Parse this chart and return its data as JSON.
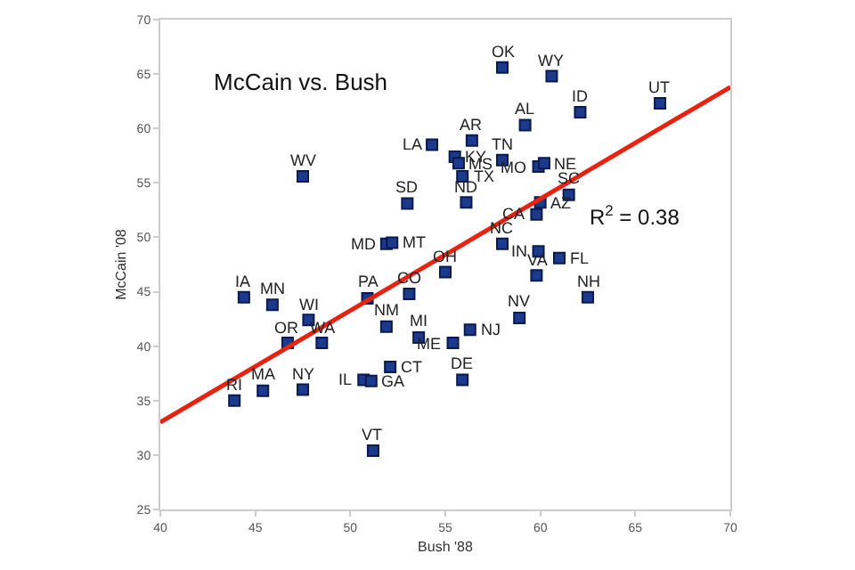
{
  "chart_data": {
    "type": "scatter",
    "title": "McCain vs. Bush",
    "xlabel": "Bush '88",
    "ylabel": "McCain '08",
    "xlim": [
      40,
      70
    ],
    "xticks": [
      40,
      45,
      50,
      55,
      60,
      65,
      70
    ],
    "ylim": [
      25,
      70
    ],
    "yticks": [
      25,
      30,
      35,
      40,
      45,
      50,
      55,
      60,
      65,
      70
    ],
    "grid": false,
    "marker": "square",
    "series": [
      {
        "color": "#1c3a8c",
        "x": [
          58.0,
          60.6,
          66.3,
          62.1,
          59.2,
          54.3,
          56.4,
          55.5,
          55.7,
          55.9,
          56.1,
          58.0,
          59.9,
          60.2,
          60.0,
          59.8,
          61.5,
          58.0,
          59.9,
          61.0,
          59.8,
          55.0,
          62.5,
          58.9,
          56.3,
          55.4,
          55.9,
          47.5,
          53.0,
          51.9,
          52.2,
          53.1,
          50.9,
          51.9,
          53.6,
          52.1,
          50.7,
          51.1,
          51.2,
          44.4,
          45.9,
          47.8,
          46.7,
          48.5,
          45.4,
          47.5,
          43.9
        ],
        "values": [
          65.6,
          64.8,
          62.3,
          61.5,
          60.3,
          58.5,
          58.9,
          57.4,
          56.8,
          55.6,
          53.2,
          57.1,
          56.5,
          56.8,
          53.2,
          52.1,
          53.9,
          49.4,
          48.7,
          48.1,
          46.5,
          46.8,
          44.5,
          42.6,
          41.5,
          40.3,
          36.9,
          55.6,
          53.1,
          49.4,
          49.5,
          44.8,
          44.4,
          41.8,
          40.8,
          38.1,
          36.9,
          36.8,
          30.4,
          44.5,
          43.8,
          42.4,
          40.3,
          40.3,
          35.9,
          36.0,
          35.0
        ]
      },
      {
        "type": "line",
        "color": "#e8220f",
        "marker": "none",
        "x": [
          40,
          70
        ],
        "values": [
          33.0,
          63.8
        ]
      }
    ],
    "annotations": [
      {
        "text": "OK",
        "x": 58.0,
        "y": 65.6
      },
      {
        "text": "WY",
        "x": 60.6,
        "y": 64.8
      },
      {
        "text": "UT",
        "x": 66.3,
        "y": 62.3
      },
      {
        "text": "ID",
        "x": 62.1,
        "y": 61.5
      },
      {
        "text": "AL",
        "x": 59.2,
        "y": 60.3
      },
      {
        "text": "LA",
        "x": 54.3,
        "y": 58.5
      },
      {
        "text": "AR",
        "x": 56.4,
        "y": 58.9
      },
      {
        "text": "KY",
        "x": 55.5,
        "y": 57.4
      },
      {
        "text": "MS",
        "x": 55.7,
        "y": 56.8
      },
      {
        "text": "TX",
        "x": 55.9,
        "y": 55.6
      },
      {
        "text": "ND",
        "x": 56.1,
        "y": 53.2
      },
      {
        "text": "TN",
        "x": 58.0,
        "y": 57.1
      },
      {
        "text": "MO",
        "x": 59.9,
        "y": 56.5
      },
      {
        "text": "NE",
        "x": 60.2,
        "y": 56.8
      },
      {
        "text": "AZ",
        "x": 60.0,
        "y": 53.2
      },
      {
        "text": "CA",
        "x": 59.8,
        "y": 52.1
      },
      {
        "text": "SC",
        "x": 61.5,
        "y": 53.9
      },
      {
        "text": "NC",
        "x": 58.0,
        "y": 49.4
      },
      {
        "text": "IN",
        "x": 59.9,
        "y": 48.7
      },
      {
        "text": "FL",
        "x": 61.0,
        "y": 48.1
      },
      {
        "text": "VA",
        "x": 59.8,
        "y": 46.5
      },
      {
        "text": "OH",
        "x": 55.0,
        "y": 46.8
      },
      {
        "text": "NH",
        "x": 62.5,
        "y": 44.5
      },
      {
        "text": "NV",
        "x": 58.9,
        "y": 42.6
      },
      {
        "text": "NJ",
        "x": 56.3,
        "y": 41.5
      },
      {
        "text": "ME",
        "x": 55.4,
        "y": 40.3
      },
      {
        "text": "DE",
        "x": 55.9,
        "y": 36.9
      },
      {
        "text": "WV",
        "x": 47.5,
        "y": 55.6
      },
      {
        "text": "SD",
        "x": 53.0,
        "y": 53.1
      },
      {
        "text": "MD",
        "x": 51.9,
        "y": 49.4
      },
      {
        "text": "MT",
        "x": 52.2,
        "y": 49.5
      },
      {
        "text": "CO",
        "x": 53.1,
        "y": 44.8
      },
      {
        "text": "PA",
        "x": 50.9,
        "y": 44.4
      },
      {
        "text": "NM",
        "x": 51.9,
        "y": 41.8
      },
      {
        "text": "MI",
        "x": 53.6,
        "y": 40.8
      },
      {
        "text": "CT",
        "x": 52.1,
        "y": 38.1
      },
      {
        "text": "IL",
        "x": 50.7,
        "y": 36.9
      },
      {
        "text": "GA",
        "x": 51.1,
        "y": 36.8
      },
      {
        "text": "VT",
        "x": 51.2,
        "y": 30.4
      },
      {
        "text": "IA",
        "x": 44.4,
        "y": 44.5
      },
      {
        "text": "MN",
        "x": 45.9,
        "y": 43.8
      },
      {
        "text": "WI",
        "x": 47.8,
        "y": 42.4
      },
      {
        "text": "OR",
        "x": 46.7,
        "y": 40.3
      },
      {
        "text": "WA",
        "x": 48.5,
        "y": 40.3
      },
      {
        "text": "MA",
        "x": 45.4,
        "y": 35.9
      },
      {
        "text": "NY",
        "x": 47.5,
        "y": 36.0
      },
      {
        "text": "RI",
        "x": 43.9,
        "y": 35.0
      },
      "R$^{2}$ = 0.38"
    ]
  }
}
